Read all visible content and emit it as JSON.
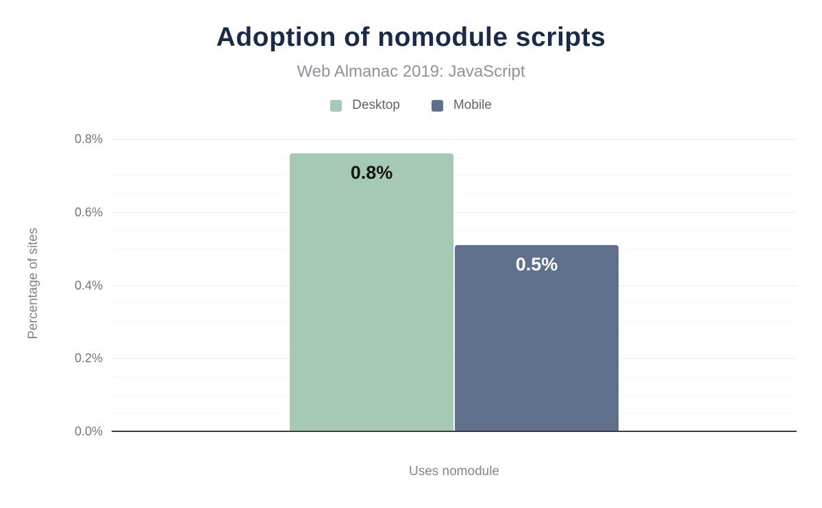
{
  "header": {
    "title": "Adoption of nomodule scripts",
    "subtitle": "Web Almanac 2019: JavaScript"
  },
  "chart_data": {
    "type": "bar",
    "title": "Adoption of nomodule scripts",
    "subtitle": "Web Almanac 2019: JavaScript",
    "categories": [
      "Uses nomodule"
    ],
    "series": [
      {
        "name": "Desktop",
        "values": [
          0.76
        ],
        "value_labels": [
          "0.8%"
        ],
        "color": "#a6c9b6",
        "value_label_color": "#141414"
      },
      {
        "name": "Mobile",
        "values": [
          0.51
        ],
        "value_labels": [
          "0.5%"
        ],
        "color": "#5e708c",
        "value_label_color": "#ffffff"
      }
    ],
    "xlabel": "Uses nomodule",
    "ylabel": "Percentage of sites",
    "ylim": [
      0,
      0.8
    ],
    "yticks": [
      {
        "value": 0.0,
        "label": "0.0%"
      },
      {
        "value": 0.2,
        "label": "0.2%"
      },
      {
        "value": 0.4,
        "label": "0.4%"
      },
      {
        "value": 0.6,
        "label": "0.6%"
      },
      {
        "value": 0.8,
        "label": "0.8%"
      }
    ],
    "minor_tick_step": 0.05,
    "grid": "horizontal",
    "legend_position": "top"
  },
  "colors": {
    "title": "#1a2b49",
    "subtitle": "#8c939d",
    "legend_text": "#5c6470",
    "tick_text": "#6f767e",
    "axis_title_text": "#7d848c",
    "gridline_major": "#ececec",
    "gridline_minor": "#f6f6f6",
    "baseline": "#3c3c3c",
    "background": "#ffffff"
  }
}
